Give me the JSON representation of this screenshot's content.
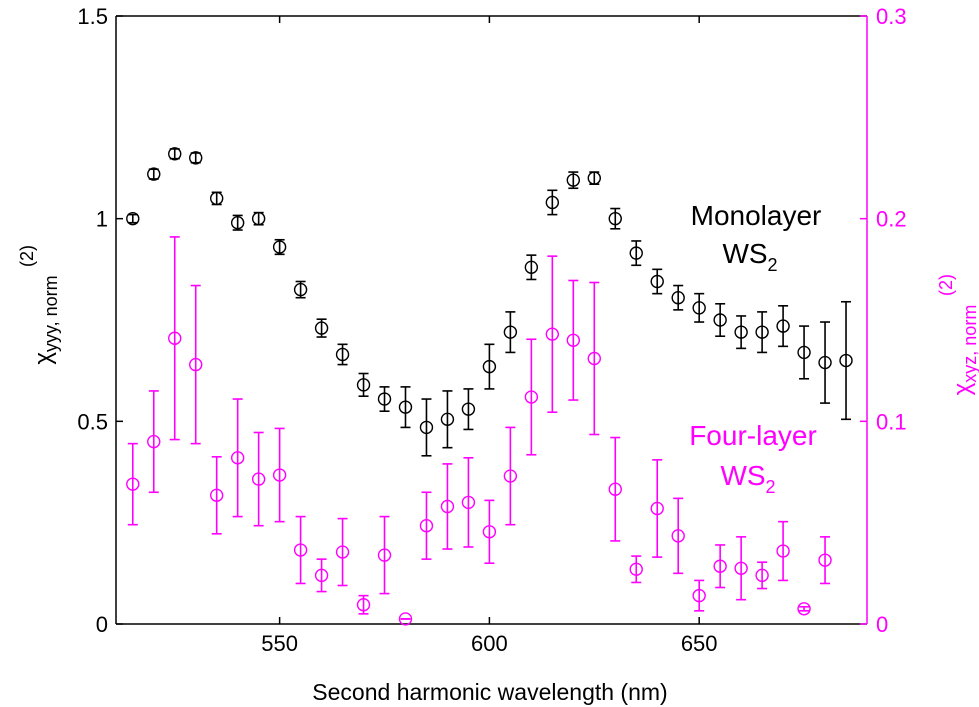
{
  "chart_data": {
    "type": "scatter",
    "xlabel": "Second harmonic wavelength (nm)",
    "ylabel_left": {
      "base": "χ",
      "sup": "(2)",
      "sub": "yyy, norm"
    },
    "ylabel_right": {
      "base": "χ",
      "sup": "(2)",
      "sub": "xyz, norm"
    },
    "xlim": [
      511,
      690
    ],
    "ylim_left": [
      0,
      1.5
    ],
    "ylim_right": [
      0,
      0.3
    ],
    "x_ticks": [
      "550",
      "600",
      "650"
    ],
    "x_tick_values": [
      550,
      600,
      650
    ],
    "y_ticks_left": [
      "0",
      "0.5",
      "1",
      "1.5"
    ],
    "y_tick_values_left": [
      0,
      0.5,
      1,
      1.5
    ],
    "y_ticks_right": [
      "0",
      "0.1",
      "0.2",
      "0.3"
    ],
    "y_tick_values_right": [
      0,
      0.1,
      0.2,
      0.3
    ],
    "grid": false,
    "colors": {
      "mono": "#000000",
      "four": "#ff00ff"
    },
    "annotations": {
      "mono": {
        "line1": "Monolayer",
        "line2_base": "WS",
        "line2_sub": "2"
      },
      "four": {
        "line1": "Four-layer",
        "line2_base": "WS",
        "line2_sub": "2"
      }
    },
    "series": [
      {
        "axis": "left",
        "color": "#000000",
        "x": [
          515,
          520,
          525,
          530,
          535,
          540,
          545,
          550,
          555,
          560,
          565,
          570,
          575,
          580,
          585,
          590,
          595,
          600,
          605,
          610,
          615,
          620,
          625,
          630,
          635,
          640,
          645,
          650,
          655,
          660,
          665,
          670,
          675,
          680,
          685
        ],
        "y": [
          1.0,
          1.11,
          1.16,
          1.15,
          1.05,
          0.99,
          1.0,
          0.93,
          0.825,
          0.73,
          0.665,
          0.59,
          0.555,
          0.535,
          0.485,
          0.505,
          0.53,
          0.635,
          0.72,
          0.88,
          1.04,
          1.095,
          1.1,
          1.0,
          0.915,
          0.845,
          0.805,
          0.78,
          0.75,
          0.72,
          0.72,
          0.735,
          0.67,
          0.645,
          0.65
        ],
        "err": [
          0.01,
          0.012,
          0.012,
          0.012,
          0.015,
          0.018,
          0.015,
          0.018,
          0.02,
          0.022,
          0.025,
          0.028,
          0.03,
          0.05,
          0.07,
          0.07,
          0.05,
          0.055,
          0.05,
          0.03,
          0.03,
          0.02,
          0.015,
          0.025,
          0.03,
          0.03,
          0.03,
          0.035,
          0.04,
          0.04,
          0.05,
          0.05,
          0.065,
          0.1,
          0.145
        ]
      },
      {
        "axis": "right",
        "color": "#ff00ff",
        "x": [
          515,
          520,
          525,
          530,
          535,
          540,
          545,
          550,
          555,
          560,
          565,
          570,
          575,
          580,
          585,
          590,
          595,
          600,
          605,
          610,
          615,
          620,
          625,
          630,
          635,
          640,
          645,
          650,
          655,
          660,
          665,
          670,
          675,
          680
        ],
        "y": [
          0.069,
          0.09,
          0.141,
          0.128,
          0.0635,
          0.082,
          0.0715,
          0.0735,
          0.0365,
          0.024,
          0.0355,
          0.0095,
          0.034,
          0.0025,
          0.0485,
          0.058,
          0.06,
          0.0455,
          0.073,
          0.112,
          0.143,
          0.14,
          0.131,
          0.0665,
          0.027,
          0.057,
          0.0435,
          0.014,
          0.0285,
          0.0275,
          0.024,
          0.036,
          0.0075,
          0.0315
        ],
        "err": [
          0.02,
          0.025,
          0.05,
          0.039,
          0.019,
          0.029,
          0.023,
          0.023,
          0.0165,
          0.008,
          0.0165,
          0.0045,
          0.019,
          0.0,
          0.0165,
          0.021,
          0.022,
          0.0155,
          0.024,
          0.0285,
          0.0385,
          0.0295,
          0.0375,
          0.0255,
          0.0065,
          0.024,
          0.0185,
          0.0075,
          0.0105,
          0.0155,
          0.0065,
          0.0145,
          0.001,
          0.0115
        ]
      }
    ]
  }
}
